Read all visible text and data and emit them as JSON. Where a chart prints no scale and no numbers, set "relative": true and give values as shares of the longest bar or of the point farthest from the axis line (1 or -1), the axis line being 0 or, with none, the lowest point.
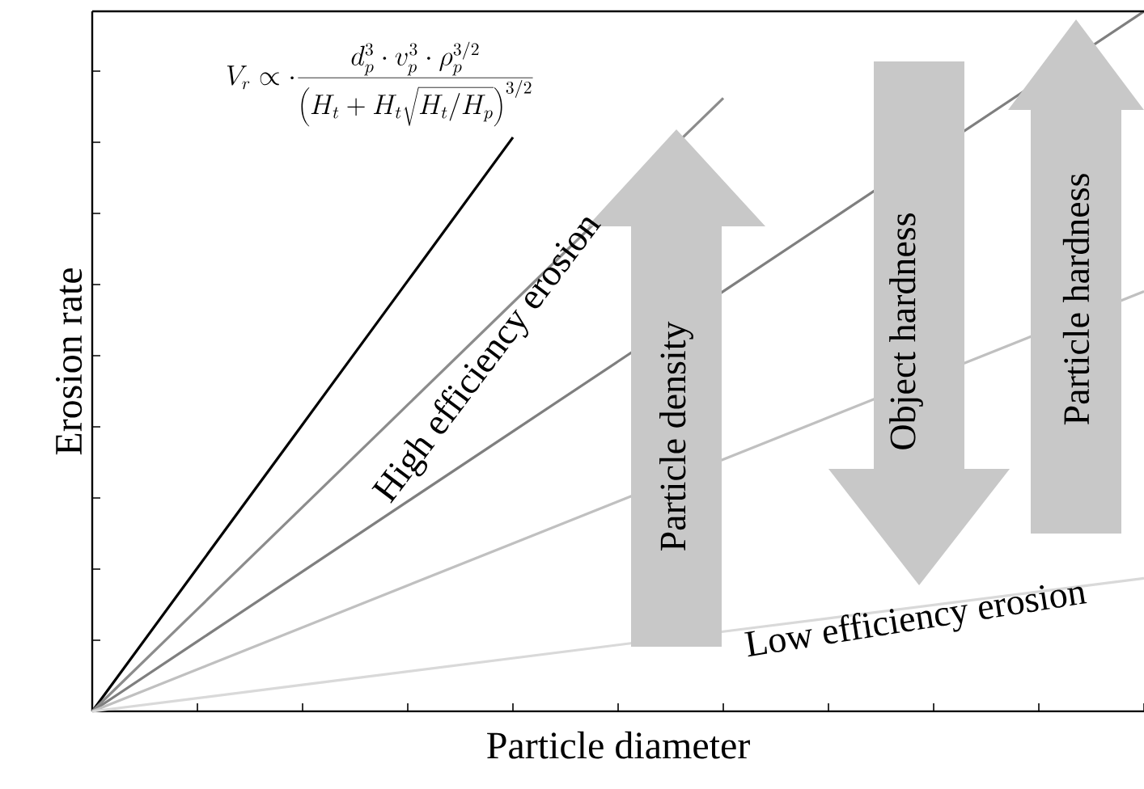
{
  "chart_data": {
    "type": "line",
    "relative": true,
    "xlabel": "Particle diameter",
    "ylabel": "Erosion rate",
    "categories": [
      null,
      null,
      null,
      null,
      null,
      null,
      null,
      null,
      null,
      null,
      null
    ],
    "series": [
      {
        "color": "#000000",
        "values": [
          0,
          0.205,
          0.41,
          0.615,
          0.82,
          null,
          null,
          null,
          null,
          null,
          null
        ]
      },
      {
        "color": "#8c8c8c",
        "values": [
          0,
          0.146,
          0.292,
          0.438,
          0.584,
          null,
          0.876,
          null,
          null,
          null,
          null
        ]
      },
      {
        "color": "#7f7f7f",
        "values": [
          0,
          0.1,
          0.2,
          0.3,
          0.4,
          0.5,
          0.6,
          0.7,
          null,
          null,
          1
        ]
      },
      {
        "color": "#c0c0c0",
        "values": [
          0,
          0.06,
          0.12,
          0.18,
          0.24,
          0.3,
          0.36,
          0.42,
          null,
          null,
          0.6
        ]
      },
      {
        "color": "#d9d9d9",
        "values": [
          0,
          0.019,
          0.038,
          0.057,
          0.076,
          0.095,
          0.114,
          0.133,
          0.152,
          0.171,
          0.19
        ]
      }
    ],
    "annotations": [
      "V_r \\propto \\cdot \\frac{d_p^3 \\cdot v_p^3 \\cdot \\rho_p^{3/2}}{\\left(H_t + H_t\\sqrt{H_t/H_p}\\right)^{3/2}}",
      "High efficiency erosion",
      "Low efficiency erosion",
      "Particle density",
      "Object hardness",
      "Particle hardness"
    ]
  }
}
